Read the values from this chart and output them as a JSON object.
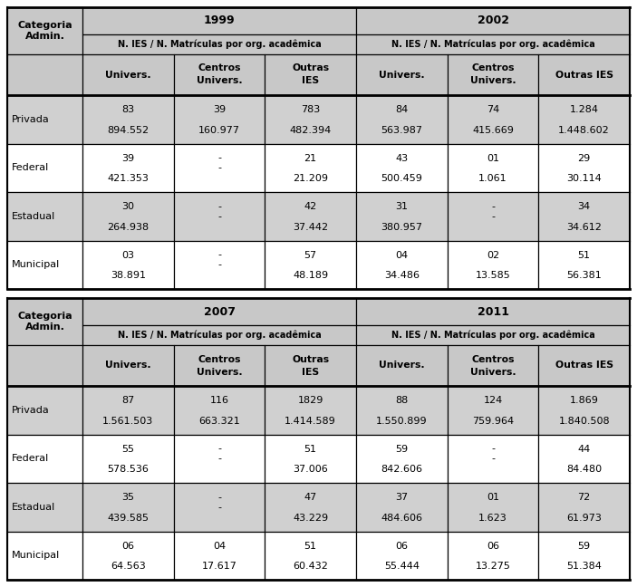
{
  "fig_width": 7.03,
  "fig_height": 6.48,
  "dpi": 100,
  "bg_color": "#ffffff",
  "header_bg": "#c8c8c8",
  "row_bg_shaded": "#d0d0d0",
  "row_bg_white": "#ffffff",
  "border_color": "#000000",
  "top_table": {
    "year1": "1999",
    "year2": "2002",
    "sub_header": "N. IES / N. Matrículas por org. acadêmica",
    "col_headers": [
      "Univers.",
      "Centros\nUnivers.",
      "Outras\nIES",
      "Univers.",
      "Centros\nUnivers.",
      "Outras IES"
    ],
    "row_labels": [
      "Privada",
      "Federal",
      "Estadual",
      "Municipal"
    ],
    "row_top": [
      "83",
      "39",
      "783",
      "84",
      "74",
      "1.284"
    ],
    "row_bot": [
      "894.552",
      "160.977",
      "482.394",
      "563.987",
      "415.669",
      "1.448.602"
    ],
    "rows": [
      [
        [
          "83",
          "894.552"
        ],
        [
          "39",
          "160.977"
        ],
        [
          "783",
          "482.394"
        ],
        [
          "84",
          "563.987"
        ],
        [
          "74",
          "415.669"
        ],
        [
          "1.284",
          "1.448.602"
        ]
      ],
      [
        [
          "39",
          "421.353"
        ],
        [
          "-",
          "-"
        ],
        [
          "21",
          "21.209"
        ],
        [
          "43",
          "500.459"
        ],
        [
          "01",
          "1.061"
        ],
        [
          "29",
          "30.114"
        ]
      ],
      [
        [
          "30",
          "264.938"
        ],
        [
          "-",
          "-"
        ],
        [
          "42",
          "37.442"
        ],
        [
          "31",
          "380.957"
        ],
        [
          "-",
          "-"
        ],
        [
          "34",
          "34.612"
        ]
      ],
      [
        [
          "03",
          "38.891"
        ],
        [
          "-",
          "-"
        ],
        [
          "57",
          "48.189"
        ],
        [
          "04",
          "34.486"
        ],
        [
          "02",
          "13.585"
        ],
        [
          "51",
          "56.381"
        ]
      ]
    ],
    "shaded_rows": [
      0,
      2
    ]
  },
  "bottom_table": {
    "year1": "2007",
    "year2": "2011",
    "sub_header": "N. IES / N. Matrículas por org. acadêmica",
    "col_headers": [
      "Univers.",
      "Centros\nUnivers.",
      "Outras\nIES",
      "Univers.",
      "Centros\nUnivers.",
      "Outras IES"
    ],
    "row_labels": [
      "Privada",
      "Federal",
      "Estadual",
      "Municipal"
    ],
    "rows": [
      [
        [
          "87",
          "1.561.503"
        ],
        [
          "116",
          "663.321"
        ],
        [
          "1829",
          "1.414.589"
        ],
        [
          "88",
          "1.550.899"
        ],
        [
          "124",
          "759.964"
        ],
        [
          "1.869",
          "1.840.508"
        ]
      ],
      [
        [
          "55",
          "578.536"
        ],
        [
          "-",
          "-"
        ],
        [
          "51",
          "37.006"
        ],
        [
          "59",
          "842.606"
        ],
        [
          "-",
          "-"
        ],
        [
          "44",
          "84.480"
        ]
      ],
      [
        [
          "35",
          "439.585"
        ],
        [
          "-",
          "-"
        ],
        [
          "47",
          "43.229"
        ],
        [
          "37",
          "484.606"
        ],
        [
          "01",
          "1.623"
        ],
        [
          "72",
          "61.973"
        ]
      ],
      [
        [
          "06",
          "64.563"
        ],
        [
          "04",
          "17.617"
        ],
        [
          "51",
          "60.432"
        ],
        [
          "06",
          "55.444"
        ],
        [
          "06",
          "13.275"
        ],
        [
          "59",
          "51.384"
        ]
      ]
    ],
    "shaded_rows": [
      0,
      2
    ]
  }
}
